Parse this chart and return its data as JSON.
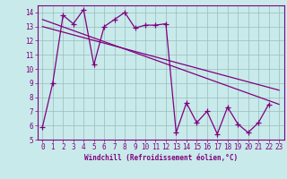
{
  "xlabel": "Windchill (Refroidissement éolien,°C)",
  "xlim": [
    -0.5,
    23.5
  ],
  "ylim": [
    5,
    14.5
  ],
  "yticks": [
    5,
    6,
    7,
    8,
    9,
    10,
    11,
    12,
    13,
    14
  ],
  "xticks": [
    0,
    1,
    2,
    3,
    4,
    5,
    6,
    7,
    8,
    9,
    10,
    11,
    12,
    13,
    14,
    15,
    16,
    17,
    18,
    19,
    20,
    21,
    22,
    23
  ],
  "bg_color": "#c8eaea",
  "line_color": "#800080",
  "grid_color": "#9bbcbc",
  "data_x": [
    0,
    1,
    2,
    3,
    4,
    5,
    6,
    7,
    8,
    9,
    10,
    11,
    12,
    13,
    14,
    15,
    16,
    17,
    18,
    19,
    20,
    21,
    22,
    23
  ],
  "data_y": [
    5.9,
    9.0,
    13.8,
    13.2,
    14.2,
    10.3,
    13.0,
    13.5,
    14.0,
    12.9,
    13.1,
    13.1,
    13.2,
    5.5,
    7.6,
    6.2,
    7.0,
    5.4,
    7.3,
    6.1,
    5.5,
    6.2,
    7.5,
    null
  ],
  "trend1_x": [
    0,
    23
  ],
  "trend1_y": [
    13.5,
    7.5
  ],
  "trend2_x": [
    0,
    23
  ],
  "trend2_y": [
    13.0,
    8.5
  ],
  "marker_size": 4,
  "line_width": 0.9,
  "font_color": "#800080",
  "tick_fontsize": 5.5,
  "xlabel_fontsize": 5.5
}
